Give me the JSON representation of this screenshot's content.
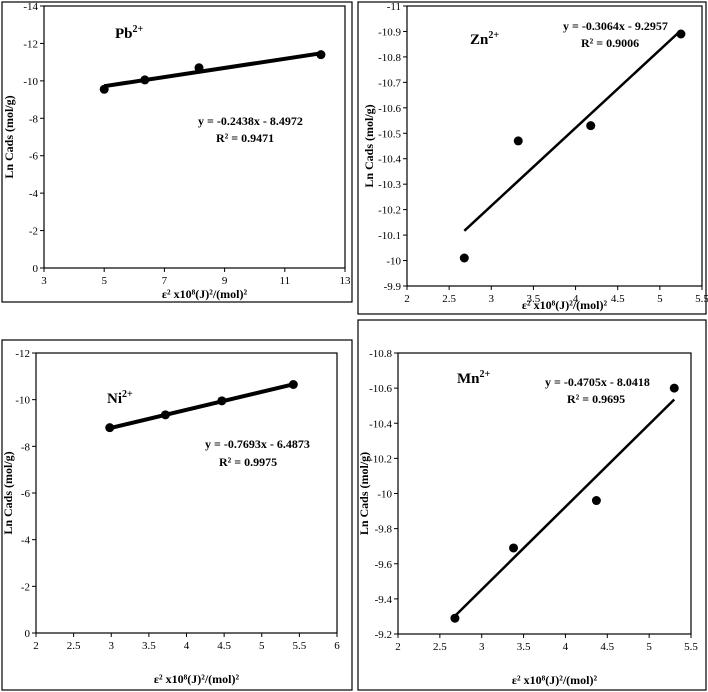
{
  "chart_data": [
    {
      "id": "pb",
      "type": "scatter",
      "ion_label": "Pb",
      "ion_charge": "2+",
      "xlabel": "ε² x10⁸(J)²/(mol)²",
      "ylabel": "Ln Cads (mol/g)",
      "xlim": [
        3,
        13
      ],
      "ylim": [
        0,
        -14
      ],
      "xticks": [
        3,
        5,
        7,
        9,
        11,
        13
      ],
      "yticks": [
        0,
        -2,
        -4,
        -6,
        -8,
        -10,
        -12,
        -14
      ],
      "yticklabels": [
        "0",
        "-2",
        "-4",
        "-6",
        "-8",
        "-10",
        "-12",
        "-14"
      ],
      "points": [
        [
          5.0,
          -9.55
        ],
        [
          6.35,
          -10.05
        ],
        [
          8.15,
          -10.7
        ],
        [
          12.2,
          -11.4
        ]
      ],
      "fit": {
        "slope": -0.2438,
        "intercept": -8.4972,
        "x_range": [
          5.0,
          12.2
        ]
      },
      "equation": "y = -0.2438x - 8.4972",
      "r2": "R² = 0.9471"
    },
    {
      "id": "zn",
      "type": "scatter",
      "ion_label": "Zn",
      "ion_charge": "2+",
      "xlabel": "ε² x10⁸(J)²/(mol)²",
      "ylabel": "Ln Cads (mol/g)",
      "xlim": [
        2,
        5.5
      ],
      "ylim": [
        -9.9,
        -11
      ],
      "xticks": [
        2,
        2.5,
        3,
        3.5,
        4,
        4.5,
        5,
        5.5
      ],
      "yticks": [
        -9.9,
        -10,
        -10.1,
        -10.2,
        -10.3,
        -10.4,
        -10.5,
        -10.6,
        -10.7,
        -10.8,
        -10.9,
        -11
      ],
      "yticklabels": [
        "-9.9",
        "-10",
        "-10.1",
        "-10.2",
        "-10.3",
        "-10.4",
        "-10.5",
        "-10.6",
        "-10.7",
        "-10.8",
        "-10.9",
        "-11"
      ],
      "points": [
        [
          2.68,
          -10.01
        ],
        [
          3.32,
          -10.47
        ],
        [
          4.18,
          -10.53
        ],
        [
          5.25,
          -10.89
        ]
      ],
      "fit": {
        "slope": -0.3064,
        "intercept": -9.2957,
        "x_range": [
          2.68,
          5.25
        ]
      },
      "equation": "y = -0.3064x - 9.2957",
      "r2": "R² = 0.9006"
    },
    {
      "id": "ni",
      "type": "scatter",
      "ion_label": "Ni",
      "ion_charge": "2+",
      "xlabel": "ε² x10⁸(J)²/(mol)²",
      "ylabel": "Ln Cads (mol/g)",
      "xlim": [
        2,
        6
      ],
      "ylim": [
        0,
        -12
      ],
      "xticks": [
        2,
        2.5,
        3,
        3.5,
        4,
        4.5,
        5,
        5.5,
        6
      ],
      "yticks": [
        0,
        -2,
        -4,
        -6,
        -8,
        -10,
        -12
      ],
      "yticklabels": [
        "0",
        "-2",
        "-4",
        "-6",
        "-8",
        "-10",
        "-12"
      ],
      "points": [
        [
          2.98,
          -8.8
        ],
        [
          3.72,
          -9.35
        ],
        [
          4.47,
          -9.95
        ],
        [
          5.42,
          -10.65
        ]
      ],
      "fit": {
        "slope": -0.7693,
        "intercept": -6.4873,
        "x_range": [
          2.98,
          5.42
        ]
      },
      "equation": "y = -0.7693x - 6.4873",
      "r2": "R² = 0.9975"
    },
    {
      "id": "mn",
      "type": "scatter",
      "ion_label": "Mn",
      "ion_charge": "2+",
      "xlabel": "ε² x10⁸(J)²/(mol)²",
      "ylabel": "Ln Cads (mol/g)",
      "xlim": [
        2,
        5.5
      ],
      "ylim": [
        -9.2,
        -10.8
      ],
      "xticks": [
        2,
        2.5,
        3,
        3.5,
        4,
        4.5,
        5,
        5.5
      ],
      "yticks": [
        -9.2,
        -9.4,
        -9.6,
        -9.8,
        -10,
        -10.2,
        -10.4,
        -10.6,
        -10.8
      ],
      "yticklabels": [
        "-9.2",
        "-9.4",
        "-9.6",
        "-9.8",
        "-10",
        "-10.2",
        "-10.4",
        "-10.6",
        "-10.8"
      ],
      "points": [
        [
          2.68,
          -9.29
        ],
        [
          3.38,
          -9.69
        ],
        [
          4.37,
          -9.96
        ],
        [
          5.3,
          -10.6
        ]
      ],
      "fit": {
        "slope": -0.4705,
        "intercept": -8.0418,
        "x_range": [
          2.68,
          5.3
        ]
      },
      "equation": "y = -0.4705x - 8.0418",
      "r2": "R² = 0.9695"
    }
  ]
}
